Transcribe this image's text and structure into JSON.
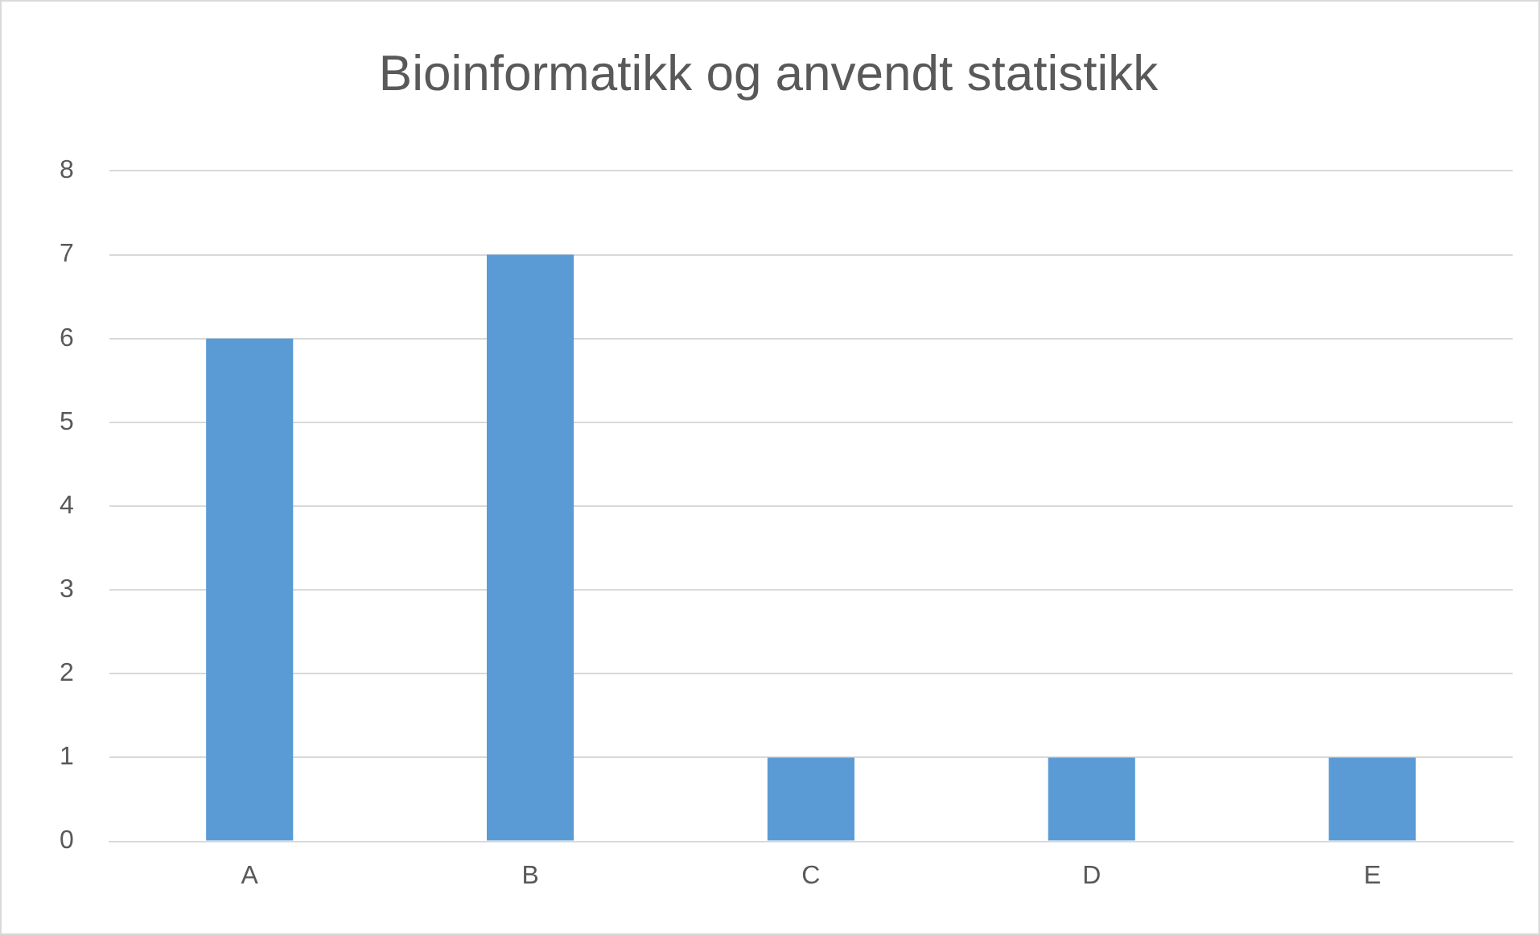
{
  "chart_data": {
    "type": "bar",
    "title": "Bioinformatikk og anvendt statistikk",
    "categories": [
      "A",
      "B",
      "C",
      "D",
      "E"
    ],
    "values": [
      6,
      7,
      1,
      1,
      1
    ],
    "color": "#5b9bd5",
    "ylim": [
      0,
      8
    ],
    "yticks": [
      0,
      1,
      2,
      3,
      4,
      5,
      6,
      7,
      8
    ],
    "grid": "y",
    "legend": false
  }
}
